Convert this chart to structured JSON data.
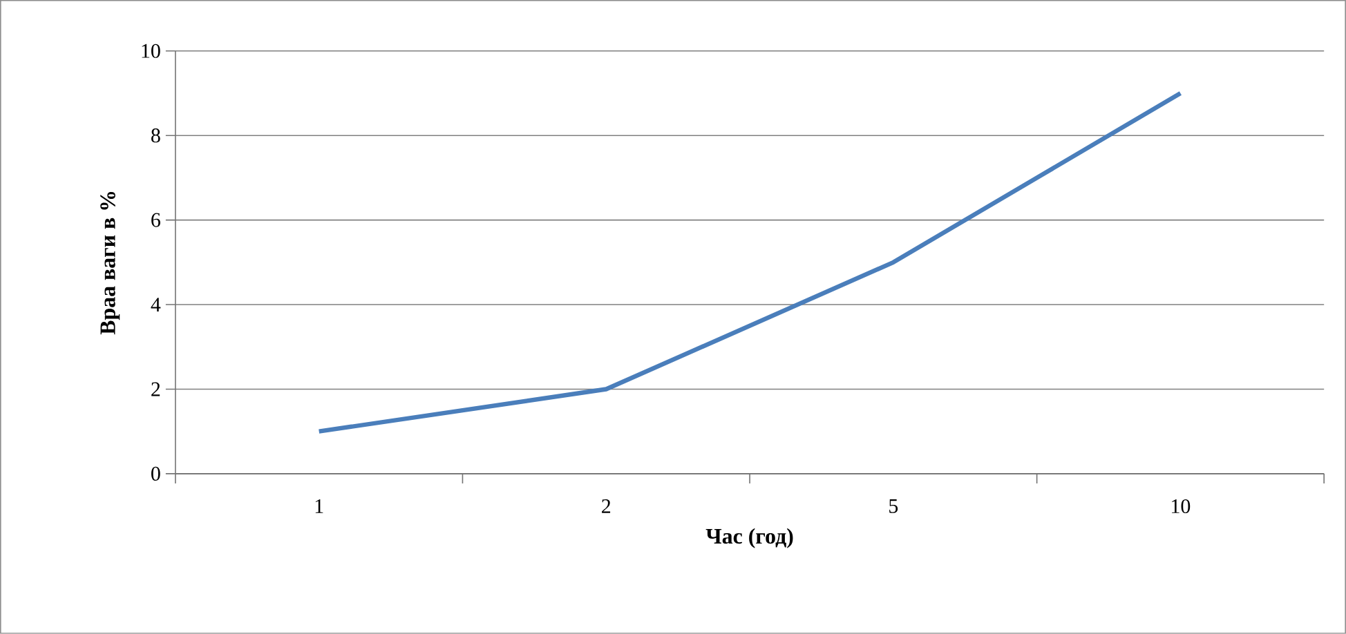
{
  "chart_data": {
    "type": "line",
    "xlabel": "Час (год)",
    "ylabel": "Враа ваги в %",
    "categories": [
      "1",
      "2",
      "5",
      "10"
    ],
    "series": [
      {
        "color": "#4a7ebb",
        "values": [
          1,
          2,
          5,
          9
        ]
      }
    ],
    "ylim": [
      0,
      10
    ],
    "yticks": [
      0,
      2,
      4,
      6,
      8,
      10
    ],
    "grid": "y",
    "marker": "none",
    "line_style": "solid"
  }
}
